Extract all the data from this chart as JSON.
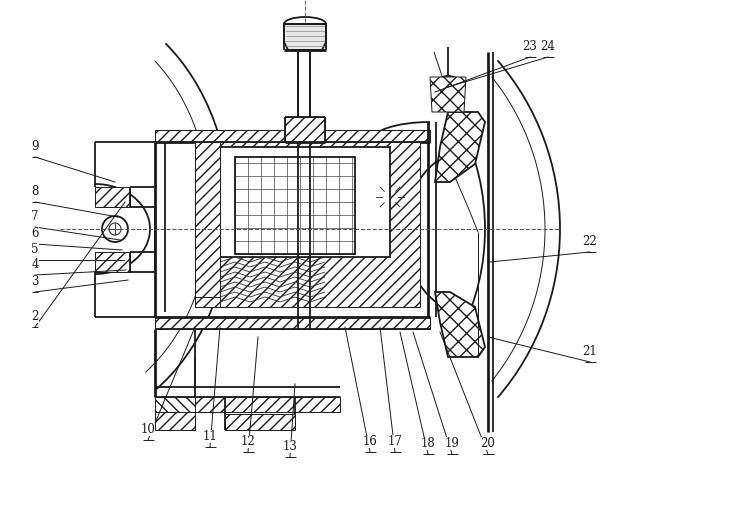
{
  "bg_color": "#ffffff",
  "line_color": "#1a1a1a",
  "lw_main": 1.3,
  "lw_thin": 0.7,
  "lw_thick": 2.0,
  "labels_left": [
    [
      35,
      355,
      115,
      330,
      "9"
    ],
    [
      35,
      310,
      118,
      295,
      "8"
    ],
    [
      35,
      285,
      120,
      272,
      "7"
    ],
    [
      35,
      268,
      122,
      262,
      "6"
    ],
    [
      35,
      252,
      124,
      252,
      "5"
    ],
    [
      35,
      237,
      126,
      242,
      "4"
    ],
    [
      35,
      220,
      128,
      232,
      "3"
    ],
    [
      35,
      185,
      125,
      310,
      "2"
    ]
  ],
  "labels_top": [
    [
      148,
      72,
      195,
      185,
      "10"
    ],
    [
      210,
      65,
      220,
      185,
      "11"
    ],
    [
      248,
      60,
      258,
      175,
      "12"
    ],
    [
      290,
      55,
      295,
      128,
      "13"
    ],
    [
      370,
      60,
      345,
      185,
      "16"
    ],
    [
      395,
      60,
      380,
      185,
      "17"
    ],
    [
      428,
      58,
      400,
      180,
      "18"
    ],
    [
      452,
      58,
      413,
      180,
      "19"
    ],
    [
      488,
      58,
      440,
      180,
      "20"
    ]
  ],
  "labels_right": [
    [
      590,
      150,
      488,
      175,
      "21"
    ],
    [
      590,
      260,
      490,
      250,
      "22"
    ]
  ],
  "labels_bottom": [
    [
      530,
      455,
      435,
      420,
      "23"
    ],
    [
      548,
      455,
      448,
      425,
      "24"
    ]
  ]
}
